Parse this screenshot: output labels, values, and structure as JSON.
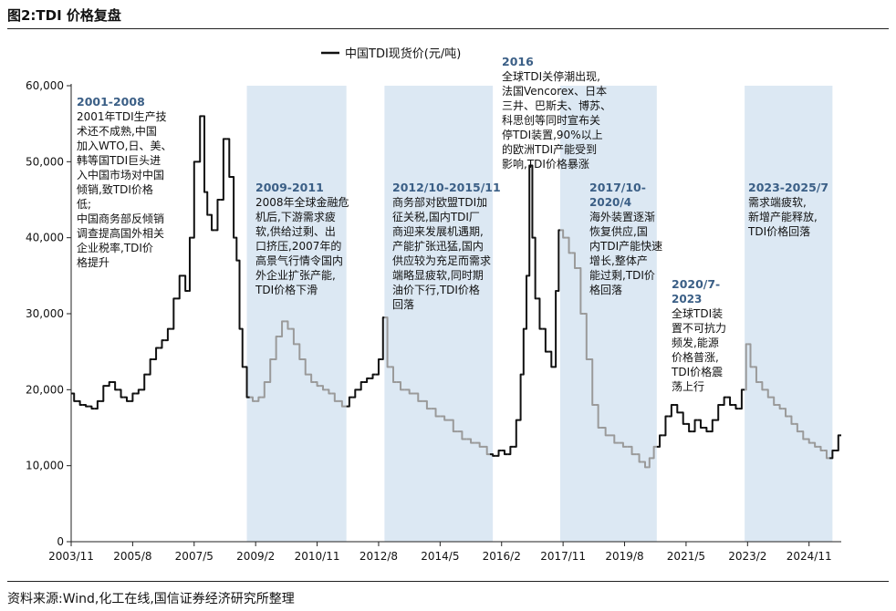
{
  "figure_title": "图2:TDI 价格复盘",
  "source_note": "资料来源:Wind,化工在线,国信证券经济研究所整理",
  "colors": {
    "highlight_line": "#111111",
    "dim_line": "#9a9a9a",
    "shade": "#dce8f3",
    "period_title": "#3b5f86"
  },
  "chart_data": {
    "type": "line",
    "title": "",
    "xlabel": "",
    "ylabel": "",
    "legend": {
      "label": "中国TDI现货价(元/吨)",
      "position": "top-center"
    },
    "ylim": [
      0,
      60000
    ],
    "yticks": [
      0,
      10000,
      20000,
      30000,
      40000,
      50000,
      60000
    ],
    "ytick_labels": [
      "0",
      "10,000",
      "20,000",
      "30,000",
      "40,000",
      "50,000",
      "60,000"
    ],
    "xlim": [
      "2003-11",
      "2025-10"
    ],
    "xtick_labels": [
      "2003/11",
      "2005/8",
      "2007/5",
      "2009/2",
      "2010/11",
      "2012/8",
      "2014/5",
      "2016/2",
      "2017/11",
      "2019/8",
      "2021/5",
      "2023/2",
      "2024/11"
    ],
    "xticks": [
      "2003-11",
      "2005-08",
      "2007-05",
      "2009-02",
      "2010-11",
      "2012-08",
      "2014-05",
      "2016-02",
      "2017-11",
      "2019-08",
      "2021-05",
      "2023-02",
      "2024-11"
    ],
    "series": [
      {
        "name": "中国TDI现货价(元/吨)",
        "points": [
          [
            "2003-11",
            19500
          ],
          [
            "2004-01",
            18500
          ],
          [
            "2004-03",
            18000
          ],
          [
            "2004-05",
            17800
          ],
          [
            "2004-07",
            17500
          ],
          [
            "2004-09",
            18500
          ],
          [
            "2004-11",
            20500
          ],
          [
            "2005-01",
            21000
          ],
          [
            "2005-03",
            20000
          ],
          [
            "2005-05",
            19000
          ],
          [
            "2005-07",
            18500
          ],
          [
            "2005-09",
            19500
          ],
          [
            "2005-11",
            20000
          ],
          [
            "2006-01",
            22000
          ],
          [
            "2006-03",
            24000
          ],
          [
            "2006-05",
            25500
          ],
          [
            "2006-07",
            26500
          ],
          [
            "2006-09",
            28000
          ],
          [
            "2006-11",
            32000
          ],
          [
            "2007-01",
            35000
          ],
          [
            "2007-03",
            33000
          ],
          [
            "2007-04",
            40000
          ],
          [
            "2007-06",
            50000
          ],
          [
            "2007-08",
            56000
          ],
          [
            "2007-09",
            46000
          ],
          [
            "2007-10",
            43000
          ],
          [
            "2007-12",
            41000
          ],
          [
            "2008-02",
            45000
          ],
          [
            "2008-04",
            53000
          ],
          [
            "2008-06",
            48000
          ],
          [
            "2008-07",
            40000
          ],
          [
            "2008-08",
            37000
          ],
          [
            "2008-09",
            28000
          ],
          [
            "2008-10",
            23000
          ],
          [
            "2008-12",
            19000
          ],
          [
            "2009-02",
            18500
          ],
          [
            "2009-04",
            19000
          ],
          [
            "2009-06",
            21000
          ],
          [
            "2009-08",
            24000
          ],
          [
            "2009-10",
            27000
          ],
          [
            "2009-12",
            29000
          ],
          [
            "2010-02",
            28000
          ],
          [
            "2010-04",
            26000
          ],
          [
            "2010-06",
            24000
          ],
          [
            "2010-08",
            22000
          ],
          [
            "2010-10",
            21000
          ],
          [
            "2010-12",
            20500
          ],
          [
            "2011-02",
            20000
          ],
          [
            "2011-04",
            19500
          ],
          [
            "2011-06",
            18500
          ],
          [
            "2011-09",
            17800
          ],
          [
            "2011-11",
            19000
          ],
          [
            "2012-01",
            20000
          ],
          [
            "2012-03",
            21000
          ],
          [
            "2012-05",
            21500
          ],
          [
            "2012-07",
            22000
          ],
          [
            "2012-09",
            24000
          ],
          [
            "2012-10",
            29500
          ],
          [
            "2012-12",
            23000
          ],
          [
            "2013-02",
            21000
          ],
          [
            "2013-05",
            20000
          ],
          [
            "2013-08",
            19500
          ],
          [
            "2013-11",
            18500
          ],
          [
            "2014-02",
            17500
          ],
          [
            "2014-05",
            16500
          ],
          [
            "2014-08",
            16000
          ],
          [
            "2014-11",
            14500
          ],
          [
            "2015-02",
            13500
          ],
          [
            "2015-05",
            13000
          ],
          [
            "2015-08",
            12500
          ],
          [
            "2015-10",
            11500
          ],
          [
            "2015-12",
            11300
          ],
          [
            "2016-02",
            12000
          ],
          [
            "2016-04",
            11500
          ],
          [
            "2016-06",
            12500
          ],
          [
            "2016-08",
            16000
          ],
          [
            "2016-09",
            22000
          ],
          [
            "2016-10",
            28000
          ],
          [
            "2016-11",
            35000
          ],
          [
            "2016-12",
            49500
          ],
          [
            "2017-01",
            40000
          ],
          [
            "2017-02",
            32000
          ],
          [
            "2017-04",
            28000
          ],
          [
            "2017-06",
            25000
          ],
          [
            "2017-08",
            23000
          ],
          [
            "2017-09",
            33000
          ],
          [
            "2017-10",
            41000
          ],
          [
            "2017-12",
            40000
          ],
          [
            "2018-02",
            38000
          ],
          [
            "2018-04",
            36000
          ],
          [
            "2018-06",
            30000
          ],
          [
            "2018-08",
            24000
          ],
          [
            "2018-10",
            18000
          ],
          [
            "2018-12",
            15000
          ],
          [
            "2019-03",
            14000
          ],
          [
            "2019-06",
            13000
          ],
          [
            "2019-09",
            12500
          ],
          [
            "2019-12",
            11500
          ],
          [
            "2020-02",
            10500
          ],
          [
            "2020-04",
            9800
          ],
          [
            "2020-05",
            11000
          ],
          [
            "2020-07",
            12500
          ],
          [
            "2020-09",
            14000
          ],
          [
            "2020-11",
            16500
          ],
          [
            "2021-01",
            18000
          ],
          [
            "2021-03",
            17000
          ],
          [
            "2021-05",
            15500
          ],
          [
            "2021-07",
            14500
          ],
          [
            "2021-09",
            16000
          ],
          [
            "2021-11",
            15000
          ],
          [
            "2022-01",
            14500
          ],
          [
            "2022-03",
            16000
          ],
          [
            "2022-05",
            18000
          ],
          [
            "2022-07",
            19000
          ],
          [
            "2022-09",
            18000
          ],
          [
            "2022-11",
            17500
          ],
          [
            "2023-01",
            20000
          ],
          [
            "2023-02",
            26000
          ],
          [
            "2023-04",
            23000
          ],
          [
            "2023-06",
            21000
          ],
          [
            "2023-08",
            20000
          ],
          [
            "2023-10",
            19000
          ],
          [
            "2023-12",
            18000
          ],
          [
            "2024-02",
            17500
          ],
          [
            "2024-04",
            16500
          ],
          [
            "2024-06",
            15500
          ],
          [
            "2024-08",
            14500
          ],
          [
            "2024-10",
            13500
          ],
          [
            "2024-12",
            13000
          ],
          [
            "2025-02",
            12500
          ],
          [
            "2025-04",
            12000
          ],
          [
            "2025-06",
            11000
          ],
          [
            "2025-08",
            12000
          ],
          [
            "2025-10",
            14000
          ]
        ]
      }
    ],
    "shaded_periods": [
      {
        "start": "2008-11",
        "end": "2011-09"
      },
      {
        "start": "2012-10",
        "end": "2015-11"
      },
      {
        "start": "2017-10",
        "end": "2020-07"
      },
      {
        "start": "2023-01",
        "end": "2025-07"
      }
    ],
    "annotations": [
      {
        "title": "2001-2008",
        "lines": [
          "2001年TDI生产技",
          "术还不成熟,中国",
          "加入WTO,日、美、",
          "韩等国TDI巨头进",
          "入中国市场对中国",
          "倾销,致TDI价格",
          "低;",
          "中国商务部反倾销",
          "调查提高国外相关",
          "企业税率,TDI价",
          "格提升"
        ]
      },
      {
        "title": "2009-2011",
        "lines": [
          "2008年全球金融危",
          "机后,下游需求疲",
          "软,供给过剩、出",
          "口挤压,2007年的",
          "高景气行情令国内",
          "外企业扩张产能,",
          "TDI价格下滑"
        ]
      },
      {
        "title": "2012/10-2015/11",
        "lines": [
          "商务部对欧盟TDI加",
          "征关税,国内TDI厂",
          "商迎来发展机遇期,",
          "产能扩张迅猛,国内",
          "供应较为充足而需求",
          "端略显疲软,同时期",
          "油价下行,TDI价格",
          "回落"
        ]
      },
      {
        "title": "2016",
        "lines": [
          "全球TDI关停潮出现,",
          "法国Vencorex、日本",
          "三井、巴斯夫、博苏、",
          "科思创等同时宣布关",
          "停TDI装置,90%以上",
          "的欧洲TDI产能受到",
          "影响,TDI价格暴涨"
        ]
      },
      {
        "title": "2017/10-",
        "lines": [
          "2020/4",
          "海外装置逐渐",
          "恢复供应,国",
          "内TDI产能快速",
          "增长,整体产",
          "能过剩,TDI价",
          "格回落"
        ]
      },
      {
        "title": "2020/7-",
        "lines": [
          "2023",
          "全球TDI装",
          "置不可抗力",
          "频发,能源",
          "价格普涨,",
          "TDI价格震",
          "荡上行"
        ]
      },
      {
        "title": "2023-2025/7",
        "lines": [
          "需求端疲软,",
          "新增产能释放,",
          "TDI价格回落"
        ]
      }
    ]
  }
}
